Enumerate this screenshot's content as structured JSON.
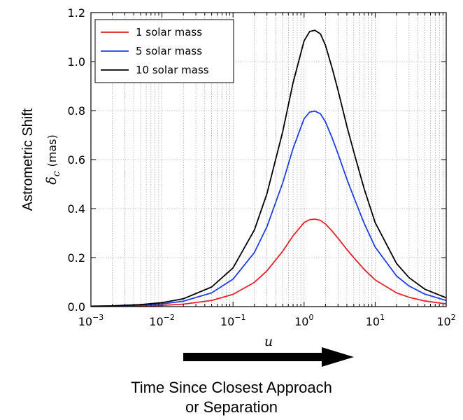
{
  "chart_data": {
    "type": "line",
    "x_scale": "log",
    "xlim": [
      0.001,
      100
    ],
    "ylim": [
      0,
      1.2
    ],
    "x_ticks": [
      {
        "base": "10",
        "exp": "−3"
      },
      {
        "base": "10",
        "exp": "−2"
      },
      {
        "base": "10",
        "exp": "−1"
      },
      {
        "base": "10",
        "exp": "0"
      },
      {
        "base": "10",
        "exp": "1"
      },
      {
        "base": "10",
        "exp": "2"
      }
    ],
    "y_ticks": [
      "0.0",
      "0.2",
      "0.4",
      "0.6",
      "0.8",
      "1.0",
      "1.2"
    ],
    "grid": true,
    "xlabel": "u",
    "ylabel_main": "Astrometric Shift",
    "ylabel_symbol": "δ",
    "ylabel_subscript": "c",
    "ylabel_unit": "(mas)",
    "legend_position": "top-left",
    "series": [
      {
        "name": "1 solar mass",
        "color": "#e8202a",
        "x": [
          0.001,
          0.002,
          0.005,
          0.01,
          0.02,
          0.05,
          0.1,
          0.2,
          0.3,
          0.5,
          0.7,
          1.0,
          1.2,
          1.414,
          1.7,
          2.0,
          2.5,
          3.0,
          4.0,
          5.0,
          7.0,
          10,
          20,
          30,
          50,
          100
        ],
        "y": [
          0.0005,
          0.001,
          0.0025,
          0.005,
          0.01,
          0.025,
          0.05,
          0.099,
          0.146,
          0.226,
          0.289,
          0.343,
          0.355,
          0.357,
          0.352,
          0.337,
          0.307,
          0.279,
          0.233,
          0.2,
          0.152,
          0.109,
          0.056,
          0.038,
          0.023,
          0.011
        ]
      },
      {
        "name": "5 solar mass",
        "color": "#1f3fe0",
        "x": [
          0.001,
          0.002,
          0.005,
          0.01,
          0.02,
          0.05,
          0.1,
          0.2,
          0.3,
          0.5,
          0.7,
          1.0,
          1.2,
          1.414,
          1.7,
          2.0,
          2.5,
          3.0,
          4.0,
          5.0,
          7.0,
          10,
          20,
          30,
          50,
          100
        ],
        "y": [
          0.0011,
          0.0022,
          0.0056,
          0.011,
          0.022,
          0.056,
          0.112,
          0.221,
          0.326,
          0.505,
          0.646,
          0.767,
          0.794,
          0.798,
          0.787,
          0.754,
          0.686,
          0.624,
          0.52,
          0.447,
          0.34,
          0.243,
          0.125,
          0.084,
          0.051,
          0.025
        ]
      },
      {
        "name": "10 solar mass",
        "color": "#000000",
        "x": [
          0.001,
          0.002,
          0.005,
          0.01,
          0.02,
          0.05,
          0.1,
          0.2,
          0.3,
          0.5,
          0.7,
          1.0,
          1.2,
          1.414,
          1.7,
          2.0,
          2.5,
          3.0,
          4.0,
          5.0,
          7.0,
          10,
          20,
          30,
          50,
          100
        ],
        "y": [
          0.0016,
          0.0032,
          0.008,
          0.016,
          0.032,
          0.08,
          0.158,
          0.313,
          0.461,
          0.714,
          0.914,
          1.085,
          1.123,
          1.128,
          1.113,
          1.066,
          0.97,
          0.883,
          0.736,
          0.632,
          0.481,
          0.343,
          0.176,
          0.118,
          0.071,
          0.036
        ]
      }
    ]
  },
  "caption": {
    "line1": "Time Since Closest Approach",
    "line2": "or Separation"
  }
}
